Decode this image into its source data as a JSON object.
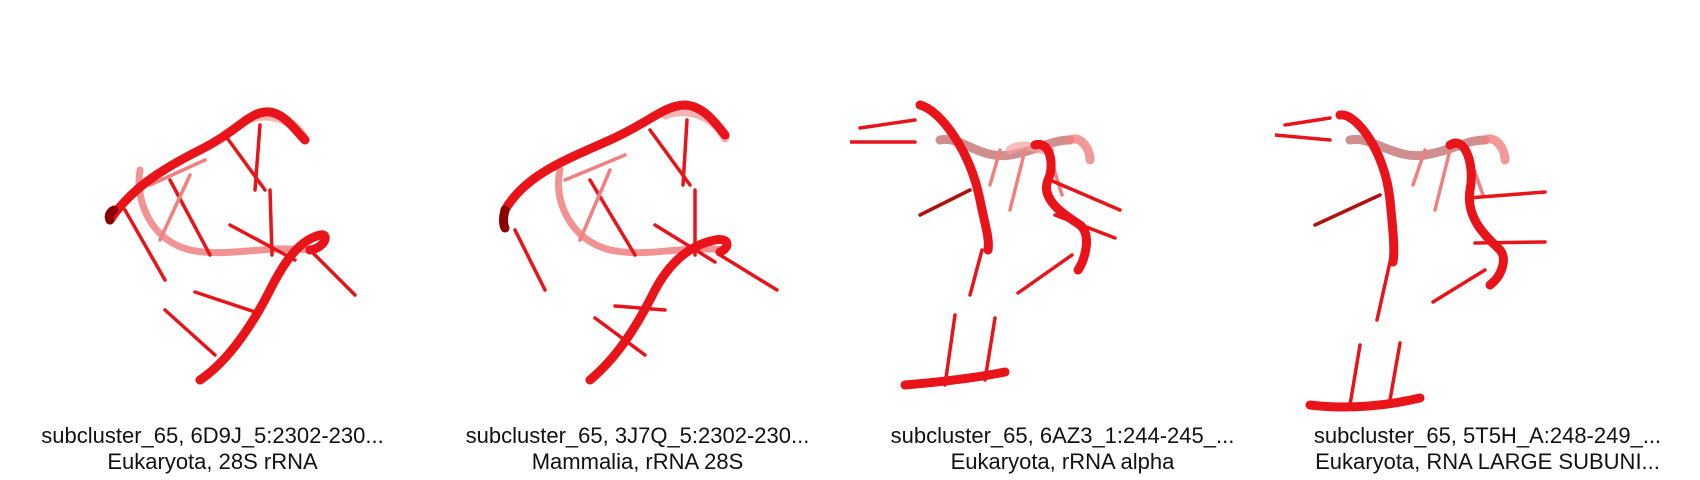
{
  "panels": [
    {
      "title": "subcluster_65, 6D9J_5:2302-230...",
      "subtitle": "Eukaryota, 28S rRNA",
      "color": "#e8141a"
    },
    {
      "title": "subcluster_65, 3J7Q_5:2302-230...",
      "subtitle": "Mammalia, rRNA 28S",
      "color": "#e8141a"
    },
    {
      "title": "subcluster_65, 6AZ3_1:244-245_...",
      "subtitle": "Eukaryota, rRNA alpha",
      "color": "#e8141a"
    },
    {
      "title": "subcluster_65, 5T5H_A:248-249_...",
      "subtitle": "Eukaryota, RNA LARGE SUBUNI...",
      "color": "#e8141a"
    }
  ]
}
